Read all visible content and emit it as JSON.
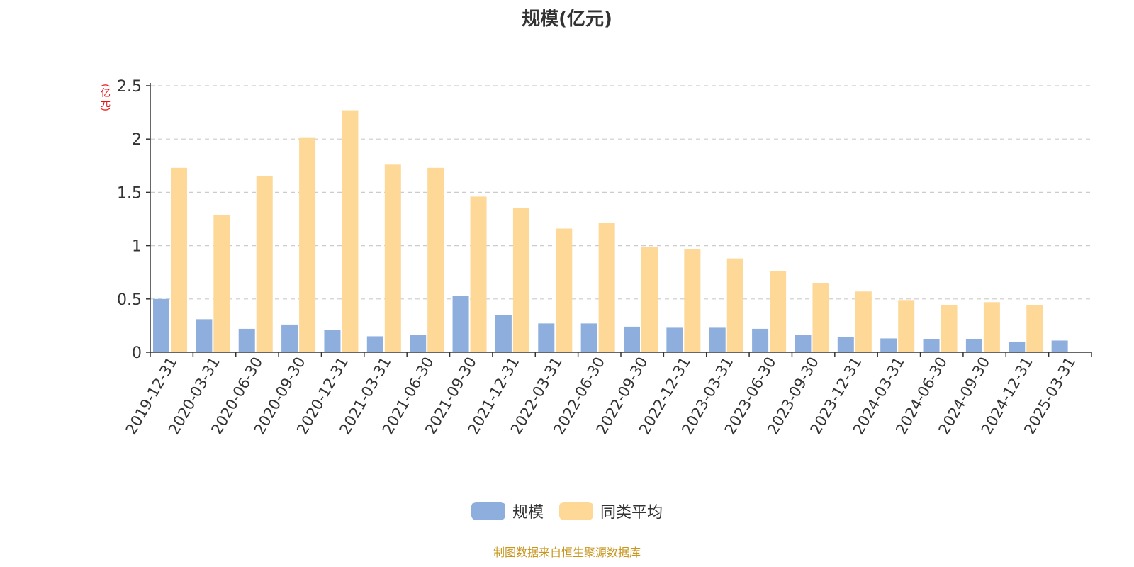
{
  "chart_data": {
    "type": "bar",
    "title": "规模(亿元)",
    "ylabel": "(亿元)",
    "ylim": [
      0,
      2.5
    ],
    "yticks": [
      0,
      0.5,
      1,
      1.5,
      2,
      2.5
    ],
    "ytick_labels": [
      "0",
      "0.5",
      "1",
      "1.5",
      "2",
      "2.5"
    ],
    "grid": true,
    "legend_position": "bottom",
    "categories": [
      "2019-12-31",
      "2020-03-31",
      "2020-06-30",
      "2020-09-30",
      "2020-12-31",
      "2021-03-31",
      "2021-06-30",
      "2021-09-30",
      "2021-12-31",
      "2022-03-31",
      "2022-06-30",
      "2022-09-30",
      "2022-12-31",
      "2023-03-31",
      "2023-06-30",
      "2023-09-30",
      "2023-12-31",
      "2024-03-31",
      "2024-06-30",
      "2024-09-30",
      "2024-12-31",
      "2025-03-31"
    ],
    "series": [
      {
        "name": "规模",
        "color": "#8eaedd",
        "values": [
          0.5,
          0.31,
          0.22,
          0.26,
          0.21,
          0.15,
          0.16,
          0.53,
          0.35,
          0.27,
          0.27,
          0.24,
          0.23,
          0.23,
          0.22,
          0.16,
          0.14,
          0.13,
          0.12,
          0.12,
          0.1,
          0.11
        ]
      },
      {
        "name": "同类平均",
        "color": "#fed897",
        "values": [
          1.73,
          1.29,
          1.65,
          2.01,
          2.27,
          1.76,
          1.73,
          1.46,
          1.35,
          1.16,
          1.21,
          0.99,
          0.97,
          0.88,
          0.76,
          0.65,
          0.57,
          0.49,
          0.44,
          0.47,
          0.44,
          null
        ]
      }
    ],
    "source": "制图数据来自恒生聚源数据库"
  },
  "legend": {
    "items": [
      "规模",
      "同类平均"
    ]
  }
}
